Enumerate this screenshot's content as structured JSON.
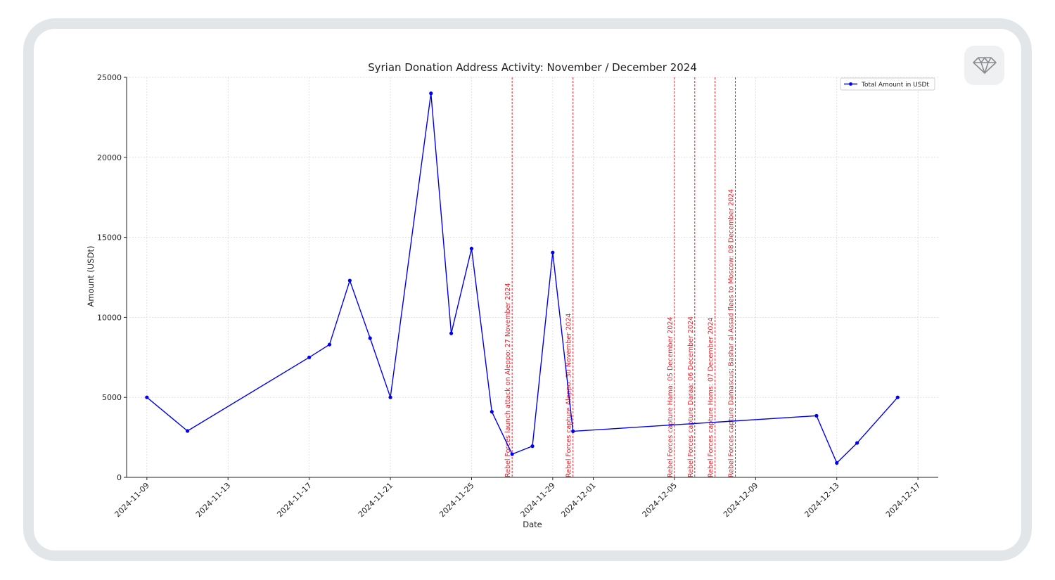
{
  "chart_data": {
    "type": "line",
    "title": "Syrian Donation Address Activity: November / December 2024",
    "xlabel": "Date",
    "ylabel": "Amount (USDt)",
    "xlim": [
      "2024-11-08",
      "2024-12-18"
    ],
    "ylim": [
      0,
      25000
    ],
    "yticks": [
      0,
      5000,
      10000,
      15000,
      20000,
      25000
    ],
    "xticks": [
      "2024-11-09",
      "2024-11-13",
      "2024-11-17",
      "2024-11-21",
      "2024-11-25",
      "2024-11-29",
      "2024-12-01",
      "2024-12-05",
      "2024-12-09",
      "2024-12-13",
      "2024-12-17"
    ],
    "grid": true,
    "legend_position": "top-right",
    "series": [
      {
        "name": "Total Amount in USDt",
        "color": "#0000ee",
        "points": [
          [
            "2024-11-09",
            5000
          ],
          [
            "2024-11-11",
            2900
          ],
          [
            "2024-11-17",
            7500
          ],
          [
            "2024-11-18",
            8300
          ],
          [
            "2024-11-19",
            12300
          ],
          [
            "2024-11-20",
            8700
          ],
          [
            "2024-11-21",
            5000
          ],
          [
            "2024-11-23",
            24000
          ],
          [
            "2024-11-24",
            9000
          ],
          [
            "2024-11-25",
            14300
          ],
          [
            "2024-11-26",
            4100
          ],
          [
            "2024-11-27",
            1450
          ],
          [
            "2024-11-28",
            1950
          ],
          [
            "2024-11-29",
            14050
          ],
          [
            "2024-11-30",
            2880
          ],
          [
            "2024-12-12",
            3850
          ],
          [
            "2024-12-13",
            900
          ],
          [
            "2024-12-14",
            2150
          ],
          [
            "2024-12-16",
            5000
          ]
        ]
      }
    ],
    "annotations": [
      {
        "date": "2024-11-27",
        "label": "Rebel Forces launch attack on Aleppo: 27 November 2024",
        "color": "#e8202a"
      },
      {
        "date": "2024-11-30",
        "label": "Rebel Forces capture Aleppo: 30 November 2024",
        "color": "#e8202a"
      },
      {
        "date": "2024-12-05",
        "label": "Rebel Forces capture Hama: 05 December 2024",
        "color": "#e8202a"
      },
      {
        "date": "2024-12-06",
        "label": "Rebel Forces capture Daraa: 06 December 2024",
        "color": "#e8202a"
      },
      {
        "date": "2024-12-07",
        "label": "Rebel Forces capture Homs: 07 December 2024",
        "color": "#e8202a"
      },
      {
        "date": "2024-12-08",
        "label": "Rebel Forces capture Damascus; Bashar al Assad flees to Moscow: 08 December 2024",
        "color": "#e8202a"
      }
    ]
  },
  "badge": {
    "icon": "diamond-icon",
    "color": "#8a8d90"
  }
}
